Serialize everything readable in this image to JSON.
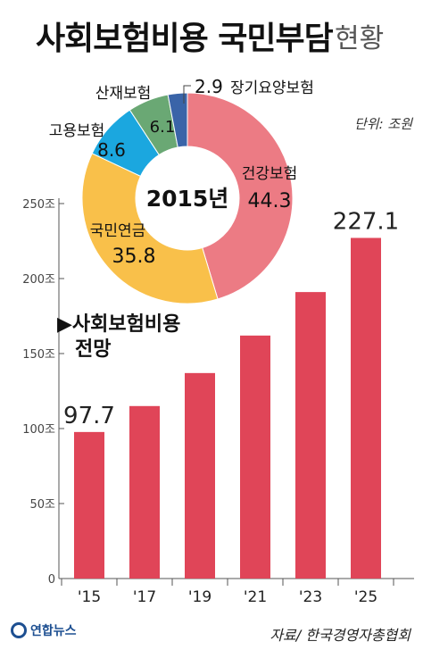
{
  "header": {
    "title_main": "사회보험비용 국민부담",
    "title_sub": "현황",
    "unit": "단위: 조원"
  },
  "footer": {
    "logo": "연합뉴스",
    "source": "자료/ 한국경영자총협회"
  },
  "chart_data": [
    {
      "type": "bar",
      "title": "▶사회보험비용 전망",
      "categories": [
        "'15",
        "'17",
        "'19",
        "'21",
        "'23",
        "'25"
      ],
      "values": [
        97.7,
        115,
        137,
        162,
        191,
        227.1
      ],
      "value_labels": [
        "97.7",
        "",
        "",
        "",
        "",
        "227.1"
      ],
      "y_ticks": [
        "0",
        "50조",
        "100조",
        "150조",
        "200조",
        "250조"
      ],
      "ylim": [
        0,
        250
      ],
      "color": "#e04558"
    },
    {
      "type": "pie",
      "title": "2015년",
      "slices": [
        {
          "name": "건강보험",
          "value": 44.3,
          "label": "44.3",
          "color": "#ec7b84"
        },
        {
          "name": "국민연금",
          "value": 35.8,
          "label": "35.8",
          "color": "#f9c04a"
        },
        {
          "name": "고용보험",
          "value": 8.6,
          "label": "8.6",
          "color": "#1ba7df"
        },
        {
          "name": "산재보험",
          "value": 6.1,
          "label": "6.1",
          "color": "#6aa874"
        },
        {
          "name": "장기요양보험",
          "value": 2.9,
          "label": "2.9",
          "color": "#3a64a8"
        }
      ]
    }
  ]
}
